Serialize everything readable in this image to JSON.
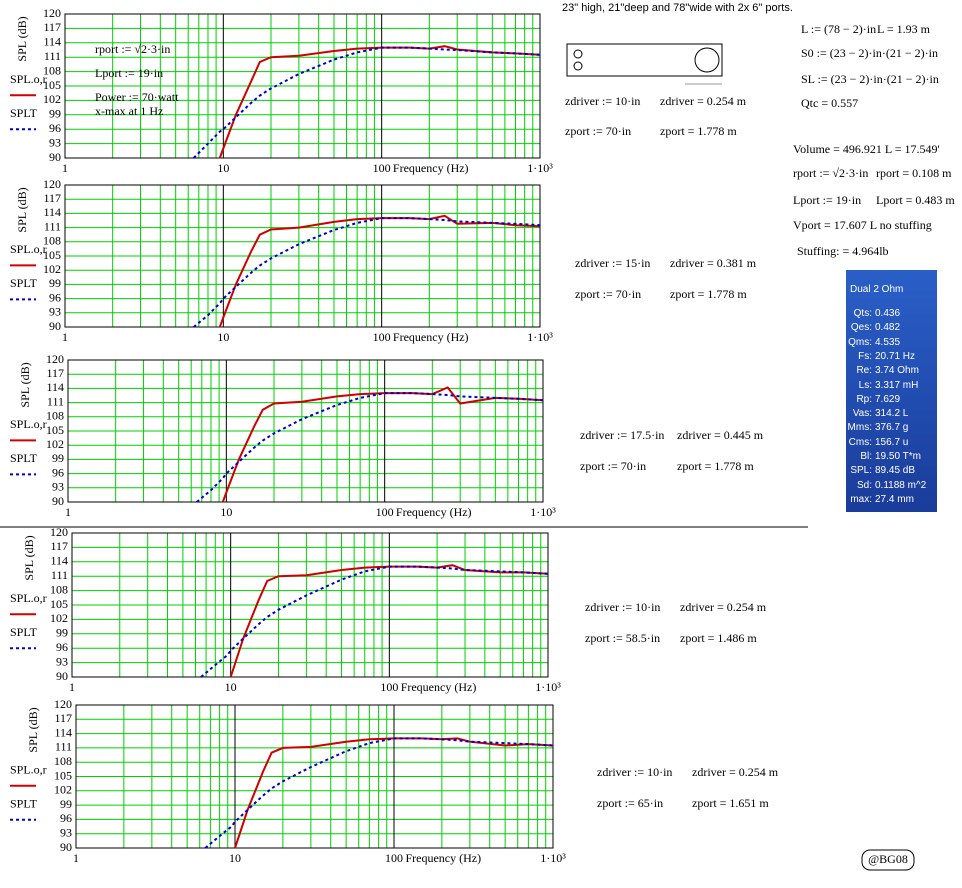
{
  "chart_data": [
    {
      "type": "line",
      "y_label": "SPL (dB)",
      "x_label": "Frequency (Hz)",
      "log_x": true,
      "grid": true,
      "xlim": [
        1,
        1000
      ],
      "xticks": [
        1,
        10,
        100,
        {
          "value": 1000,
          "label": "1·10³"
        }
      ],
      "ylim": [
        90,
        120
      ],
      "yticks": [
        90,
        93,
        96,
        99,
        102,
        105,
        108,
        111,
        114,
        117,
        120
      ],
      "x": [
        6.5,
        8,
        9.5,
        10,
        12,
        15,
        17,
        20,
        30,
        50,
        70,
        100,
        150,
        200,
        250,
        300,
        500,
        700,
        1000
      ],
      "series": [
        {
          "name": "SPL.o,r",
          "color": "#d00000",
          "dash": false,
          "values": [
            null,
            null,
            90,
            92,
            99,
            106,
            110,
            111,
            111.3,
            112.3,
            112.8,
            113,
            113,
            112.8,
            113.3,
            112.6,
            112,
            111.8,
            111.5
          ]
        },
        {
          "name": "SPLT",
          "color": "#0000cc",
          "dash": true,
          "values": [
            90,
            93,
            95.5,
            96,
            98.5,
            101.5,
            103,
            104.5,
            107.5,
            110.5,
            112,
            113,
            113,
            112.8,
            112.6,
            112.5,
            112,
            111.8,
            111.5
          ]
        }
      ],
      "annotations": [
        "rport := √2·3·in",
        "Lport := 19·in",
        "Power := 70·watt",
        "x-max at 1 Hz"
      ],
      "notes": [
        "zdriver := 10·in",
        "zdriver = 0.254 m",
        "zport := 70·in",
        "zport = 1.778 m"
      ]
    },
    {
      "type": "line",
      "y_label": "SPL (dB)",
      "x_label": "Frequency (Hz)",
      "log_x": true,
      "grid": true,
      "xlim": [
        1,
        1000
      ],
      "xticks": [
        1,
        10,
        100,
        {
          "value": 1000,
          "label": "1·10³"
        }
      ],
      "ylim": [
        90,
        120
      ],
      "yticks": [
        90,
        93,
        96,
        99,
        102,
        105,
        108,
        111,
        114,
        117,
        120
      ],
      "x": [
        6.5,
        8,
        9.5,
        10,
        12,
        15,
        17,
        20,
        30,
        50,
        70,
        100,
        150,
        200,
        250,
        300,
        500,
        700,
        1000
      ],
      "series": [
        {
          "name": "SPL.o,r",
          "color": "#d00000",
          "dash": false,
          "values": [
            null,
            null,
            90,
            92,
            99,
            106,
            109.5,
            110.6,
            111,
            112.2,
            112.8,
            113,
            113,
            112.8,
            113.5,
            111.8,
            112,
            111.5,
            111.3
          ]
        },
        {
          "name": "SPLT",
          "color": "#0000cc",
          "dash": true,
          "values": [
            90,
            92.5,
            95,
            96,
            98.5,
            101.5,
            103,
            104.5,
            107.5,
            110.5,
            112,
            113,
            113,
            112.8,
            112.6,
            112.3,
            112,
            111.8,
            111.5
          ]
        }
      ],
      "notes": [
        "zdriver := 15·in",
        "zdriver = 0.381 m",
        "zport := 70·in",
        "zport = 1.778 m"
      ]
    },
    {
      "type": "line",
      "y_label": "SPL (dB)",
      "x_label": "Frequency (Hz)",
      "log_x": true,
      "grid": true,
      "xlim": [
        1,
        1000
      ],
      "xticks": [
        1,
        10,
        100,
        {
          "value": 1000,
          "label": "1·10³"
        }
      ],
      "ylim": [
        90,
        120
      ],
      "yticks": [
        90,
        93,
        96,
        99,
        102,
        105,
        108,
        111,
        114,
        117,
        120
      ],
      "x": [
        6.5,
        8,
        9.5,
        10,
        12,
        15,
        17,
        20,
        30,
        50,
        70,
        100,
        150,
        200,
        250,
        300,
        500,
        700,
        1000
      ],
      "series": [
        {
          "name": "SPL.o,r",
          "color": "#d00000",
          "dash": false,
          "values": [
            null,
            null,
            90,
            92,
            99,
            106,
            109.5,
            110.8,
            111.2,
            112.3,
            112.8,
            113,
            113,
            112.8,
            114.2,
            110.8,
            112,
            111.8,
            111.5
          ]
        },
        {
          "name": "SPLT",
          "color": "#0000cc",
          "dash": true,
          "values": [
            90,
            92.5,
            95,
            96,
            98.5,
            101.5,
            103,
            104.5,
            107.5,
            110.5,
            112,
            113,
            113,
            112.8,
            112.6,
            112.3,
            112,
            111.8,
            111.5
          ]
        }
      ],
      "notes": [
        "zdriver := 17.5·in",
        "zdriver = 0.445 m",
        "zport := 70·in",
        "zport = 1.778 m"
      ]
    },
    {
      "type": "line",
      "y_label": "SPL (dB)",
      "x_label": "Frequency (Hz)",
      "log_x": true,
      "grid": true,
      "xlim": [
        1,
        1000
      ],
      "xticks": [
        1,
        10,
        100,
        {
          "value": 1000,
          "label": "1·10³"
        }
      ],
      "ylim": [
        90,
        120
      ],
      "yticks": [
        90,
        93,
        96,
        99,
        102,
        105,
        108,
        111,
        114,
        117,
        120
      ],
      "x": [
        6.5,
        8,
        9.5,
        10,
        12,
        15,
        17,
        20,
        30,
        50,
        70,
        100,
        150,
        200,
        250,
        300,
        500,
        700,
        1000
      ],
      "series": [
        {
          "name": "SPL.o,r",
          "color": "#d00000",
          "dash": false,
          "values": [
            null,
            null,
            null,
            90,
            98,
            106,
            110,
            111,
            111.2,
            112.3,
            112.8,
            113,
            113,
            112.8,
            113.3,
            112.3,
            111.8,
            111.8,
            111.5
          ]
        },
        {
          "name": "SPLT",
          "color": "#0000cc",
          "dash": true,
          "values": [
            90,
            92.5,
            94.5,
            95.5,
            98,
            101,
            102.5,
            104,
            107,
            110.3,
            112,
            113,
            113,
            112.8,
            112.6,
            112.3,
            112,
            111.8,
            111.5
          ]
        }
      ],
      "notes": [
        "zdriver := 10·in",
        "zdriver = 0.254 m",
        "zport := 58.5·in",
        "zport = 1.486 m"
      ]
    },
    {
      "type": "line",
      "y_label": "SPL (dB)",
      "x_label": "Frequency (Hz)",
      "log_x": true,
      "grid": true,
      "xlim": [
        1,
        1000
      ],
      "xticks": [
        1,
        10,
        100,
        {
          "value": 1000,
          "label": "1·10³"
        }
      ],
      "ylim": [
        90,
        120
      ],
      "yticks": [
        90,
        93,
        96,
        99,
        102,
        105,
        108,
        111,
        114,
        117,
        120
      ],
      "x": [
        6.5,
        8,
        9.5,
        10,
        12,
        15,
        17,
        20,
        30,
        50,
        70,
        100,
        150,
        200,
        250,
        300,
        500,
        700,
        1000
      ],
      "series": [
        {
          "name": "SPL.o,r",
          "color": "#d00000",
          "dash": false,
          "values": [
            null,
            null,
            null,
            90,
            98,
            106,
            110,
            111,
            111.2,
            112.3,
            112.8,
            113,
            113,
            112.8,
            113,
            112.3,
            111.5,
            111.8,
            111.5
          ]
        },
        {
          "name": "SPLT",
          "color": "#0000cc",
          "dash": true,
          "values": [
            90,
            92.5,
            94.5,
            95.5,
            98,
            101,
            102.5,
            104,
            107,
            110.3,
            112,
            113,
            113,
            112.8,
            112.6,
            112.3,
            112,
            111.8,
            111.5
          ]
        }
      ],
      "notes": [
        "zdriver := 10·in",
        "zdriver = 0.254 m",
        "zport := 65·in",
        "zport = 1.651 m"
      ]
    }
  ],
  "header": "23\" high, 21\"deep and 78\"wide with 2x 6\" ports.",
  "calc": [
    "L := (78 − 2)·in",
    "L = 1.93 m",
    "S0 := (23 − 2)·in·(21 − 2)·in",
    "SL := (23 − 2)·in·(21 − 2)·in",
    "Qtc = 0.557",
    "Volume = 496.921 L  = 17.549'",
    "rport := √2·3·in",
    "rport = 0.108 m",
    "Lport := 19·in",
    "Lport = 0.483 m",
    "Vport = 17.607 L  no stuffing",
    "Stuffing: = 4.964lb"
  ],
  "driver": {
    "title": "Dual 2 Ohm",
    "rows": [
      [
        "Qts:",
        "0.436"
      ],
      [
        "Qes:",
        "0.482"
      ],
      [
        "Qms:",
        "4.535"
      ],
      [
        "Fs:",
        "20.71 Hz"
      ],
      [
        "Re:",
        "3.74 Ohm"
      ],
      [
        "Ls:",
        "3.317 mH"
      ],
      [
        "Rp:",
        "7.629"
      ],
      [
        "Vas:",
        "314.2 L"
      ],
      [
        "Mms:",
        "376.7 g"
      ],
      [
        "Cms:",
        "156.7 u"
      ],
      [
        "Bl:",
        "19.50 T*m"
      ],
      [
        "SPL:",
        "89.45 dB"
      ],
      [
        "Sd:",
        "0.1188 m^2"
      ],
      [
        "max:",
        "27.4 mm"
      ]
    ]
  },
  "signature": "@BG08"
}
